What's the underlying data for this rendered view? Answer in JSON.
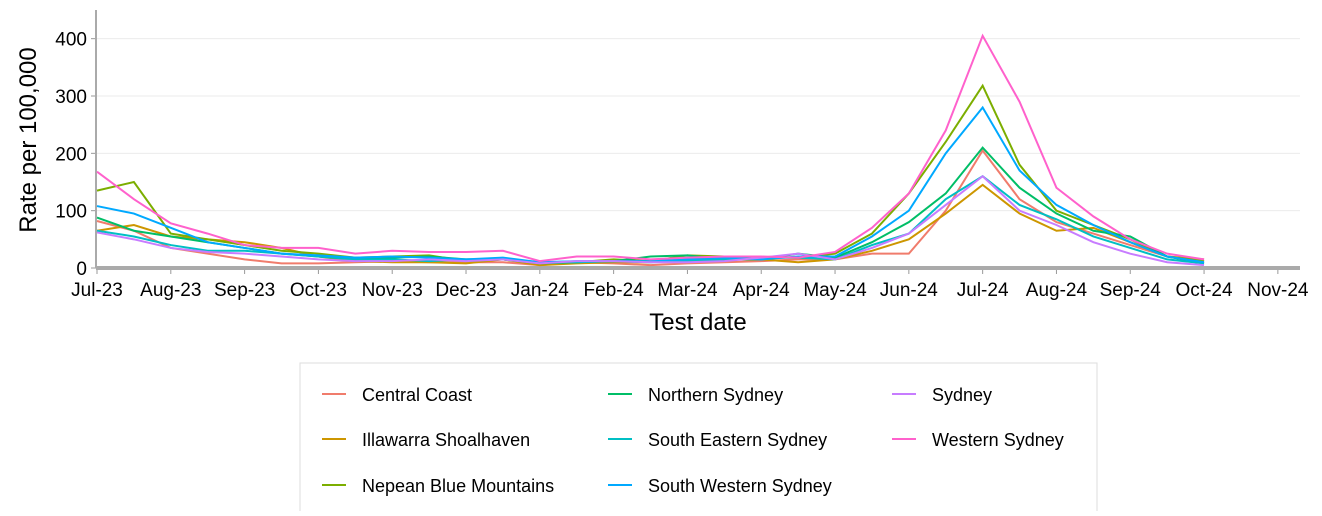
{
  "chart_data": {
    "type": "line",
    "x_label": "Test date",
    "y_label": "Rate per 100,000",
    "x": [
      0,
      0.5,
      1,
      1.5,
      2,
      2.5,
      3,
      3.5,
      4,
      4.5,
      5,
      5.5,
      6,
      6.5,
      7,
      7.5,
      8,
      8.5,
      9,
      9.5,
      10,
      10.5,
      11,
      11.5,
      12,
      12.5,
      13,
      13.5,
      14,
      14.5,
      15
    ],
    "xlim": [
      0,
      16.3
    ],
    "xticks": [
      {
        "value": 0,
        "label": "Jul-23"
      },
      {
        "value": 1,
        "label": "Aug-23"
      },
      {
        "value": 2,
        "label": "Sep-23"
      },
      {
        "value": 3,
        "label": "Oct-23"
      },
      {
        "value": 4,
        "label": "Nov-23"
      },
      {
        "value": 5,
        "label": "Dec-23"
      },
      {
        "value": 6,
        "label": "Jan-24"
      },
      {
        "value": 7,
        "label": "Feb-24"
      },
      {
        "value": 8,
        "label": "Mar-24"
      },
      {
        "value": 9,
        "label": "Apr-24"
      },
      {
        "value": 10,
        "label": "May-24"
      },
      {
        "value": 11,
        "label": "Jun-24"
      },
      {
        "value": 12,
        "label": "Jul-24"
      },
      {
        "value": 13,
        "label": "Aug-24"
      },
      {
        "value": 14,
        "label": "Sep-24"
      },
      {
        "value": 15,
        "label": "Oct-24"
      },
      {
        "value": 16,
        "label": "Nov-24"
      }
    ],
    "ylim": [
      0,
      450
    ],
    "yticks": [
      0,
      100,
      200,
      300,
      400
    ],
    "grid": true,
    "series": [
      {
        "name": "Central Coast",
        "color": "#f07c6c",
        "values": [
          82,
          65,
          35,
          25,
          15,
          8,
          8,
          10,
          12,
          10,
          10,
          10,
          5,
          10,
          8,
          5,
          8,
          10,
          12,
          15,
          15,
          25,
          25,
          100,
          205,
          120,
          80,
          60,
          40,
          20,
          12
        ]
      },
      {
        "name": "Illawarra Shoalhaven",
        "color": "#cd9600",
        "values": [
          65,
          75,
          55,
          50,
          45,
          35,
          20,
          12,
          10,
          10,
          8,
          15,
          5,
          8,
          10,
          10,
          15,
          15,
          15,
          10,
          15,
          30,
          50,
          95,
          145,
          95,
          65,
          70,
          45,
          20,
          15
        ]
      },
      {
        "name": "Nepean Blue Mountains",
        "color": "#7cae00",
        "values": [
          135,
          150,
          60,
          50,
          40,
          30,
          25,
          18,
          20,
          22,
          12,
          15,
          8,
          10,
          15,
          12,
          22,
          20,
          18,
          18,
          25,
          60,
          130,
          220,
          318,
          180,
          100,
          75,
          50,
          20,
          12
        ]
      },
      {
        "name": "Northern Sydney",
        "color": "#00be67",
        "values": [
          88,
          65,
          55,
          45,
          35,
          25,
          20,
          15,
          18,
          20,
          15,
          15,
          8,
          10,
          12,
          20,
          22,
          15,
          15,
          25,
          18,
          45,
          80,
          130,
          210,
          140,
          95,
          65,
          55,
          20,
          8
        ]
      },
      {
        "name": "South Eastern Sydney",
        "color": "#00bfc4",
        "values": [
          65,
          55,
          40,
          30,
          30,
          25,
          20,
          15,
          15,
          12,
          15,
          15,
          10,
          10,
          12,
          10,
          12,
          15,
          18,
          18,
          15,
          40,
          60,
          120,
          160,
          110,
          85,
          55,
          35,
          15,
          8
        ]
      },
      {
        "name": "South Western Sydney",
        "color": "#00a9ff",
        "values": [
          108,
          95,
          70,
          45,
          35,
          25,
          22,
          18,
          20,
          18,
          15,
          18,
          10,
          12,
          12,
          12,
          15,
          18,
          15,
          20,
          20,
          55,
          100,
          200,
          280,
          170,
          110,
          75,
          45,
          20,
          10
        ]
      },
      {
        "name": "Sydney",
        "color": "#c77cff",
        "values": [
          62,
          50,
          35,
          28,
          25,
          20,
          15,
          12,
          12,
          15,
          12,
          15,
          8,
          12,
          12,
          10,
          10,
          12,
          18,
          25,
          15,
          35,
          60,
          110,
          160,
          100,
          75,
          45,
          25,
          10,
          5
        ]
      },
      {
        "name": "Western Sydney",
        "color": "#ff61cc",
        "values": [
          168,
          120,
          78,
          60,
          40,
          35,
          35,
          25,
          30,
          28,
          28,
          30,
          12,
          20,
          20,
          15,
          18,
          20,
          20,
          18,
          28,
          70,
          130,
          240,
          405,
          290,
          140,
          90,
          50,
          25,
          15
        ]
      }
    ]
  }
}
